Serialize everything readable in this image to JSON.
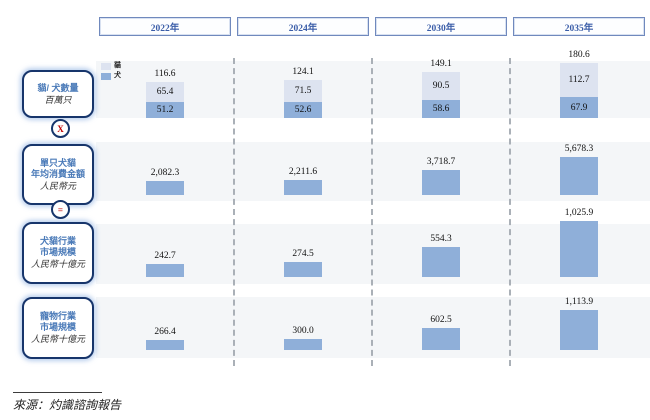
{
  "header": {
    "years": [
      "2022年",
      "2024年",
      "2030年",
      "2035年"
    ]
  },
  "left_rail": {
    "boxes": [
      {
        "lines": [
          "貓/ 犬數量"
        ],
        "unit": "百萬只"
      },
      {
        "lines": [
          "單只犬貓",
          "年均消費金額"
        ],
        "unit": "人民幣元"
      },
      {
        "lines": [
          "犬貓行業",
          "市場規模"
        ],
        "unit": "人民幣十億元"
      },
      {
        "lines": [
          "寵物行業",
          "市場規模"
        ],
        "unit": "人民幣十億元"
      }
    ],
    "operators": {
      "multiply": "X",
      "equals": "="
    }
  },
  "legend": {
    "items": [
      {
        "label": "貓",
        "color": "#dde3f0"
      },
      {
        "label": "犬",
        "color": "#8fafd9"
      }
    ]
  },
  "colors": {
    "bar_primary": "#8fafd9",
    "bar_secondary": "#dde3f0",
    "accent_red": "#c00000",
    "navy_border": "#17356b",
    "year_text": "#3a5da8",
    "band_bg": "#f4f6f8"
  },
  "source": {
    "text": "來源：灼識諮詢報告"
  },
  "chart_data": {
    "type": "bar",
    "categories": [
      "2022年",
      "2024年",
      "2030年",
      "2035年"
    ],
    "legend_position": "top-left of first row",
    "grid": false,
    "rows": [
      {
        "type": "stacked-bar",
        "name": "貓/犬數量",
        "unit": "百萬只",
        "series": [
          {
            "name": "貓",
            "color": "#dde3f0",
            "values": [
              65.4,
              71.5,
              90.5,
              112.7
            ],
            "labels": [
              "65.4",
              "71.5",
              "90.5",
              "112.7"
            ]
          },
          {
            "name": "犬",
            "color": "#8fafd9",
            "values": [
              51.2,
              52.6,
              58.6,
              67.9
            ],
            "labels": [
              "51.2",
              "52.6",
              "58.6",
              "67.9"
            ]
          }
        ],
        "totals": [
          116.6,
          124.1,
          149.1,
          180.6
        ],
        "total_labels": [
          "116.6",
          "124.1",
          "149.1",
          "180.6"
        ]
      },
      {
        "type": "bar",
        "name": "單只犬貓年均消費金額",
        "unit": "人民幣元",
        "values": [
          2082.3,
          2211.6,
          3718.7,
          5678.3
        ],
        "labels": [
          "2,082.3",
          "2,211.6",
          "3,718.7",
          "5,678.3"
        ]
      },
      {
        "type": "bar",
        "name": "犬貓行業市場規模",
        "unit": "人民幣十億元",
        "values": [
          242.7,
          274.5,
          554.3,
          1025.9
        ],
        "labels": [
          "242.7",
          "274.5",
          "554.3",
          "1,025.9"
        ]
      },
      {
        "type": "bar",
        "name": "寵物行業市場規模",
        "unit": "人民幣十億元",
        "values": [
          266.4,
          300.0,
          602.5,
          1113.9
        ],
        "labels": [
          "266.4",
          "300.0",
          "602.5",
          "1,113.9"
        ]
      }
    ]
  }
}
